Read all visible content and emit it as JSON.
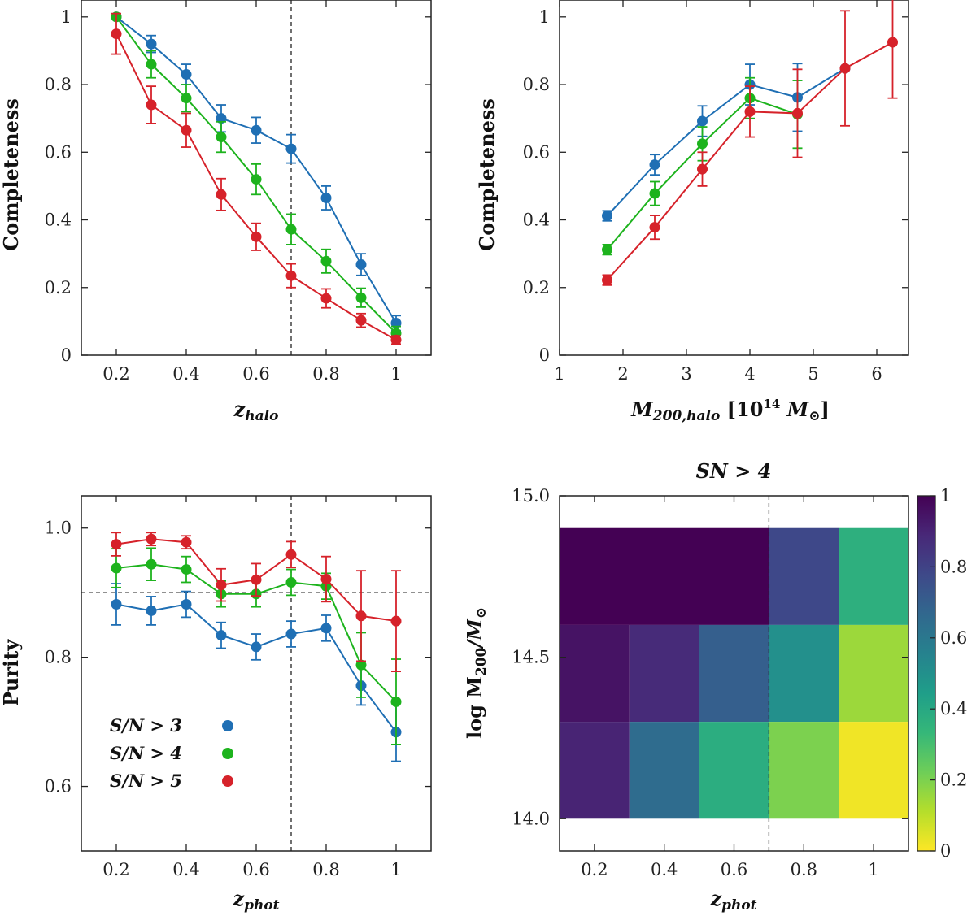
{
  "colors": {
    "sn3": "#1f6fb4",
    "sn3_light": "#5aa0d8",
    "sn4": "#1db31d",
    "sn5": "#d6222a",
    "viridis": [
      "#440154",
      "#482878",
      "#3e4989",
      "#31688e",
      "#26828e",
      "#1f9e89",
      "#35b779",
      "#6ece58",
      "#b5de2b",
      "#fde725"
    ]
  },
  "chart_data": [
    {
      "id": "completeness_z",
      "type": "line",
      "xlabel": "z",
      "xlabel_sub": "halo",
      "ylabel": "Completeness",
      "xlim": [
        0.1,
        1.1
      ],
      "ylim": [
        0,
        1.05
      ],
      "xticks": [
        0.2,
        0.4,
        0.6,
        0.8,
        1.0
      ],
      "xtick_labels": [
        "0.2",
        "0.4",
        "0.6",
        "0.8",
        "1"
      ],
      "yticks": [
        0,
        0.2,
        0.4,
        0.6,
        0.8,
        1.0
      ],
      "ytick_labels": [
        "0",
        "0.2",
        "0.4",
        "0.6",
        "0.8",
        "1"
      ],
      "vline": 0.7,
      "x": [
        0.2,
        0.3,
        0.4,
        0.5,
        0.6,
        0.7,
        0.8,
        0.9,
        1.0
      ],
      "series": [
        {
          "name": "S/N > 3",
          "color": "sn3",
          "values": [
            1.0,
            0.92,
            0.83,
            0.7,
            0.665,
            0.61,
            0.465,
            0.268,
            0.095
          ],
          "errors": [
            0.0,
            0.025,
            0.03,
            0.04,
            0.038,
            0.042,
            0.035,
            0.032,
            0.022
          ]
        },
        {
          "name": "S/N > 4",
          "color": "sn4",
          "values": [
            1.0,
            0.86,
            0.76,
            0.645,
            0.52,
            0.372,
            0.278,
            0.17,
            0.065
          ],
          "errors": [
            0.0,
            0.04,
            0.04,
            0.045,
            0.045,
            0.045,
            0.035,
            0.028,
            0.02
          ]
        },
        {
          "name": "S/N > 5",
          "color": "sn5",
          "values": [
            0.95,
            0.74,
            0.665,
            0.475,
            0.35,
            0.235,
            0.168,
            0.103,
            0.045
          ],
          "errors": [
            0.06,
            0.055,
            0.05,
            0.047,
            0.04,
            0.035,
            0.028,
            0.02,
            0.012
          ]
        }
      ]
    },
    {
      "id": "completeness_mass",
      "type": "line",
      "xlabel": "M",
      "xlabel_sub": "200,halo",
      "xlabel_unit": "[10",
      "xlabel_exp": "14",
      "xlabel_unit2": " M",
      "xlabel_sun": "⊙",
      "xlabel_close": "]",
      "ylabel": "Completeness",
      "xlim": [
        1,
        6.5
      ],
      "ylim": [
        0,
        1.05
      ],
      "xticks": [
        1,
        2,
        3,
        4,
        5,
        6
      ],
      "xtick_labels": [
        "1",
        "2",
        "3",
        "4",
        "5",
        "6"
      ],
      "yticks": [
        0,
        0.2,
        0.4,
        0.6,
        0.8,
        1.0
      ],
      "ytick_labels": [
        "0",
        "0.2",
        "0.4",
        "0.6",
        "0.8",
        "1"
      ],
      "series": [
        {
          "name": "S/N > 3",
          "color": "sn3",
          "x": [
            1.75,
            2.5,
            3.25,
            4.0,
            4.75,
            5.5
          ],
          "values": [
            0.412,
            0.563,
            0.692,
            0.8,
            0.762,
            0.848
          ],
          "errors": [
            0.015,
            0.03,
            0.045,
            0.06,
            0.1,
            0.0
          ]
        },
        {
          "name": "S/N > 4",
          "color": "sn4",
          "x": [
            1.75,
            2.5,
            3.25,
            4.0,
            4.75
          ],
          "values": [
            0.312,
            0.478,
            0.625,
            0.76,
            0.712
          ],
          "errors": [
            0.015,
            0.035,
            0.05,
            0.06,
            0.1
          ]
        },
        {
          "name": "S/N > 5",
          "color": "sn5",
          "x": [
            1.75,
            2.5,
            3.25,
            4.0,
            4.75,
            5.5,
            6.25
          ],
          "values": [
            0.222,
            0.378,
            0.55,
            0.72,
            0.715,
            0.848,
            0.925
          ],
          "errors": [
            0.015,
            0.035,
            0.05,
            0.075,
            0.13,
            0.17,
            0.165
          ]
        }
      ]
    },
    {
      "id": "purity_z",
      "type": "line",
      "xlabel": "z",
      "xlabel_sub": "phot",
      "ylabel": "Purity",
      "xlim": [
        0.1,
        1.1
      ],
      "ylim": [
        0.5,
        1.05
      ],
      "xticks": [
        0.2,
        0.4,
        0.6,
        0.8,
        1.0
      ],
      "xtick_labels": [
        "0.2",
        "0.4",
        "0.6",
        "0.8",
        "1"
      ],
      "yticks": [
        0.6,
        0.8,
        1.0
      ],
      "ytick_labels": [
        "0.6",
        "0.8",
        "1.0"
      ],
      "vline": 0.7,
      "hline": 0.9,
      "x": [
        0.2,
        0.3,
        0.4,
        0.5,
        0.6,
        0.7,
        0.8,
        0.9,
        1.0
      ],
      "legend": {
        "position": "bottom-left",
        "labels": [
          "S/N > 3",
          "S/N > 4",
          "S/N > 5"
        ]
      },
      "series": [
        {
          "name": "S/N > 3",
          "color": "sn3",
          "values": [
            0.882,
            0.872,
            0.882,
            0.834,
            0.816,
            0.836,
            0.845,
            0.756,
            0.684
          ],
          "errors": [
            0.032,
            0.022,
            0.02,
            0.02,
            0.02,
            0.02,
            0.02,
            0.03,
            0.045
          ]
        },
        {
          "name": "S/N > 4",
          "color": "sn4",
          "values": [
            0.938,
            0.944,
            0.936,
            0.898,
            0.898,
            0.916,
            0.91,
            0.788,
            0.731
          ],
          "errors": [
            0.03,
            0.025,
            0.02,
            0.02,
            0.02,
            0.02,
            0.02,
            0.05,
            0.066
          ]
        },
        {
          "name": "S/N > 5",
          "color": "sn5",
          "values": [
            0.975,
            0.983,
            0.978,
            0.912,
            0.92,
            0.959,
            0.921,
            0.864,
            0.856
          ],
          "errors": [
            0.018,
            0.01,
            0.01,
            0.025,
            0.025,
            0.02,
            0.035,
            0.07,
            0.078
          ]
        }
      ]
    },
    {
      "id": "heatmap_sn4",
      "type": "heatmap",
      "title": "SN > 4",
      "xlabel": "z",
      "xlabel_sub": "phot",
      "ylabel": "log M",
      "ylabel_sub": "200",
      "ylabel_rest": "/M",
      "ylabel_sun": "⊙",
      "xlim": [
        0.1,
        1.1
      ],
      "ylim": [
        13.9,
        15.0
      ],
      "xticks": [
        0.2,
        0.4,
        0.6,
        0.8,
        1.0
      ],
      "xtick_labels": [
        "0.2",
        "0.4",
        "0.6",
        "0.8",
        "1"
      ],
      "yticks": [
        14.0,
        14.5,
        15.0
      ],
      "ytick_labels": [
        "14.0",
        "14.5",
        "15.0"
      ],
      "vline": 0.7,
      "colorbar": {
        "range": [
          0,
          1
        ],
        "ticks": [
          0,
          0.2,
          0.4,
          0.6,
          0.8,
          1.0
        ],
        "tick_labels": [
          "0",
          "0.2",
          "0.4",
          "0.6",
          "0.8",
          "1"
        ]
      },
      "cells": [
        {
          "x0": 0.1,
          "x1": 0.7,
          "y0": 14.6,
          "y1": 14.9,
          "value": 1.0
        },
        {
          "x0": 0.7,
          "x1": 0.9,
          "y0": 14.6,
          "y1": 14.9,
          "value": 0.78
        },
        {
          "x0": 0.9,
          "x1": 1.1,
          "y0": 14.6,
          "y1": 14.9,
          "value": 0.37
        },
        {
          "x0": 0.1,
          "x1": 0.3,
          "y0": 14.3,
          "y1": 14.6,
          "value": 0.95
        },
        {
          "x0": 0.3,
          "x1": 0.5,
          "y0": 14.3,
          "y1": 14.6,
          "value": 0.88
        },
        {
          "x0": 0.5,
          "x1": 0.7,
          "y0": 14.3,
          "y1": 14.6,
          "value": 0.7
        },
        {
          "x0": 0.7,
          "x1": 0.9,
          "y0": 14.3,
          "y1": 14.6,
          "value": 0.5
        },
        {
          "x0": 0.9,
          "x1": 1.1,
          "y0": 14.3,
          "y1": 14.6,
          "value": 0.15
        },
        {
          "x0": 0.1,
          "x1": 0.3,
          "y0": 14.0,
          "y1": 14.3,
          "value": 0.9
        },
        {
          "x0": 0.3,
          "x1": 0.5,
          "y0": 14.0,
          "y1": 14.3,
          "value": 0.65
        },
        {
          "x0": 0.5,
          "x1": 0.7,
          "y0": 14.0,
          "y1": 14.3,
          "value": 0.38
        },
        {
          "x0": 0.7,
          "x1": 0.9,
          "y0": 14.0,
          "y1": 14.3,
          "value": 0.2
        },
        {
          "x0": 0.9,
          "x1": 1.1,
          "y0": 14.0,
          "y1": 14.3,
          "value": 0.02
        }
      ]
    }
  ]
}
